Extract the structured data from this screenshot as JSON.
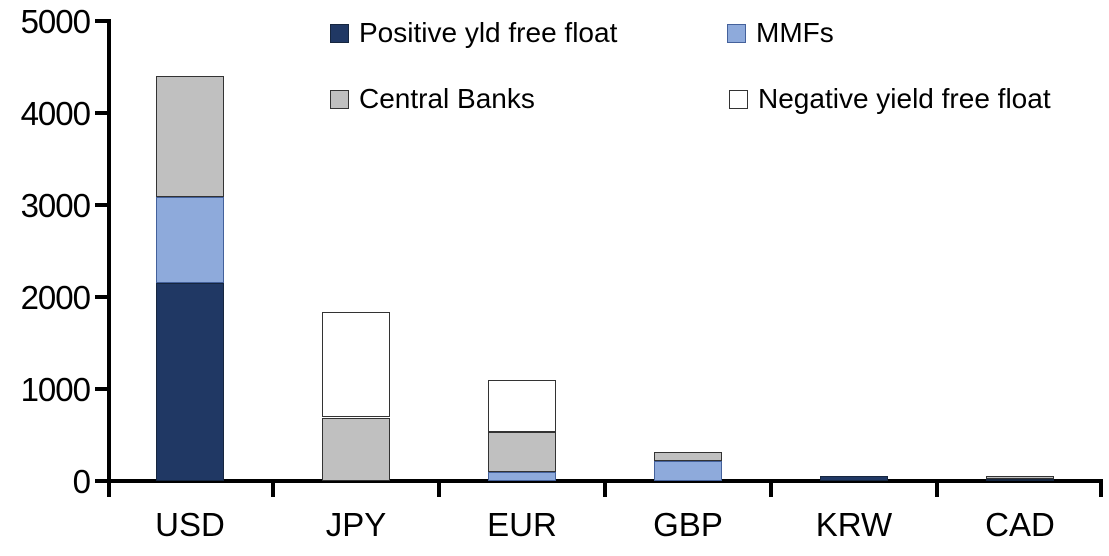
{
  "chart_data": {
    "type": "bar",
    "subtype": "stacked",
    "title": "",
    "xlabel": "",
    "ylabel": "",
    "categories": [
      "USD",
      "JPY",
      "EUR",
      "GBP",
      "KRW",
      "CAD"
    ],
    "series": [
      {
        "name": "Positive yld free float",
        "color": "#203864",
        "border": "#16263f",
        "values": [
          2150,
          0,
          0,
          0,
          50,
          25
        ]
      },
      {
        "name": "MMFs",
        "color": "#8EAADB",
        "border": "#44619b",
        "values": [
          940,
          0,
          100,
          220,
          0,
          0
        ]
      },
      {
        "name": "Central Banks",
        "color": "#C0C0C0",
        "border": "#333333",
        "values": [
          1310,
          690,
          430,
          100,
          0,
          30
        ]
      },
      {
        "name": "Negative yield free float",
        "color": "#FFFFFF",
        "border": "#333333",
        "values": [
          0,
          1145,
          570,
          0,
          0,
          0
        ]
      }
    ],
    "totals": [
      4400,
      1835,
      1100,
      320,
      50,
      55
    ],
    "ylim": [
      0,
      5000
    ],
    "yticks": [
      "0",
      "1000",
      "2000",
      "3000",
      "4000",
      "5000"
    ],
    "grid": false,
    "legend_position": "top",
    "axis_color": "#000000",
    "background_color": "#FFFFFF"
  }
}
